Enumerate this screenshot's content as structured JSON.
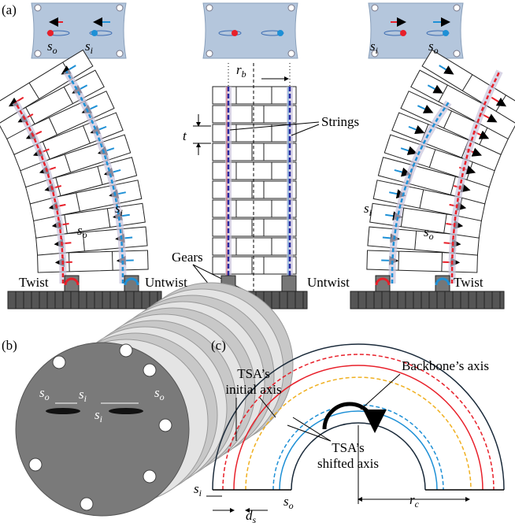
{
  "panel_a": {
    "label": "(a)",
    "left": {
      "top_so": {
        "var": "s",
        "sub": "o"
      },
      "top_si": {
        "var": "s",
        "sub": "i"
      },
      "si": {
        "var": "s",
        "sub": "i"
      },
      "so": {
        "var": "s",
        "sub": "o"
      },
      "twist": "Twist",
      "untwist": "Untwist"
    },
    "middle": {
      "rb": {
        "var": "r",
        "sub": "b"
      },
      "t": "t",
      "strings": "Strings",
      "gears": "Gears"
    },
    "right": {
      "top_si": {
        "var": "s",
        "sub": "i"
      },
      "top_so": {
        "var": "s",
        "sub": "o"
      },
      "si": {
        "var": "s",
        "sub": "i"
      },
      "so": {
        "var": "s",
        "sub": "o"
      },
      "untwist": "Untwist",
      "twist": "Twist"
    }
  },
  "panel_b": {
    "label": "(b)",
    "so_left": {
      "var": "s",
      "sub": "o"
    },
    "si_left": {
      "var": "s",
      "sub": "i"
    },
    "si_right": {
      "var": "s",
      "sub": "i"
    },
    "so_right": {
      "var": "s",
      "sub": "o"
    }
  },
  "panel_c": {
    "label": "(c)",
    "backbone_axis": "Backbone’s axis",
    "initial_axis": [
      "TSA’s",
      "initial axis"
    ],
    "shifted_axis": [
      "TSA’s",
      "shifted axis"
    ],
    "rc": {
      "var": "r",
      "sub": "c"
    },
    "ds": {
      "var": "d",
      "sub": "s"
    },
    "si": {
      "var": "s",
      "sub": "i"
    },
    "so": {
      "var": "s",
      "sub": "o"
    }
  }
}
